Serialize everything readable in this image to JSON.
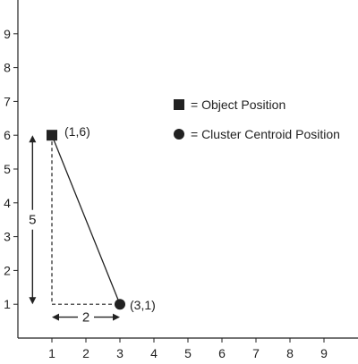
{
  "chart_data": {
    "type": "scatter",
    "xlim": [
      0,
      10
    ],
    "ylim": [
      0,
      10
    ],
    "x_ticks": [
      "1",
      "2",
      "3",
      "4",
      "5",
      "6",
      "7",
      "8",
      "9"
    ],
    "y_ticks": [
      "1",
      "2",
      "3",
      "4",
      "5",
      "6",
      "7",
      "8",
      "9"
    ],
    "grid": false,
    "series": [
      {
        "name": "= Object Position",
        "marker": "square",
        "points": [
          {
            "x": 1,
            "y": 6,
            "label": "(1,6)"
          }
        ]
      },
      {
        "name": "= Cluster Centroid Position",
        "marker": "circle",
        "points": [
          {
            "x": 3,
            "y": 1,
            "label": "(3,1)"
          }
        ]
      }
    ],
    "annotations": {
      "connector": {
        "from": [
          1,
          6
        ],
        "to": [
          3,
          1
        ],
        "style": "solid"
      },
      "vertical_leg": {
        "from": [
          1,
          6
        ],
        "to": [
          1,
          1
        ],
        "style": "dashed"
      },
      "horizontal_leg": {
        "from": [
          1,
          1
        ],
        "to": [
          3,
          1
        ],
        "style": "dashed"
      },
      "vertical_distance": {
        "label": "5",
        "from_y": 6,
        "to_y": 1
      },
      "horizontal_distance": {
        "label": "2",
        "from_x": 1,
        "to_x": 3
      }
    },
    "legend": {
      "placement": "right"
    },
    "colors": {
      "ink": "#222222"
    }
  }
}
